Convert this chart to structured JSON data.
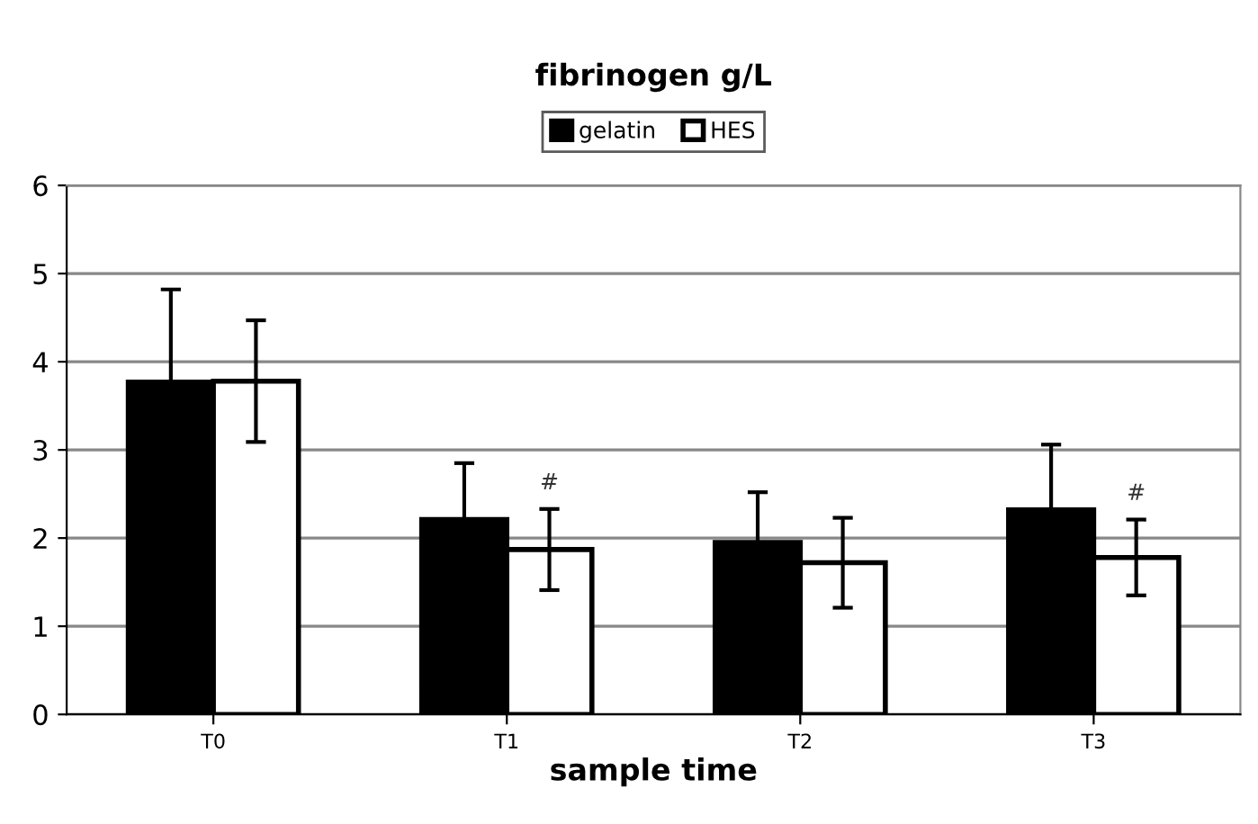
{
  "chart_data": {
    "type": "bar",
    "title": "fibrinogen g/L",
    "xlabel": "sample time",
    "categories": [
      "T0",
      "T1",
      "T2",
      "T3"
    ],
    "series": [
      {
        "name": "gelatin",
        "color": "#000000",
        "values": [
          3.77,
          2.21,
          1.95,
          2.32
        ],
        "errors": [
          1.05,
          0.64,
          0.57,
          0.74
        ]
      },
      {
        "name": "HES",
        "color": "#ffffff",
        "values": [
          3.78,
          1.87,
          1.72,
          1.78
        ],
        "errors": [
          0.69,
          0.46,
          0.51,
          0.43
        ]
      }
    ],
    "annotations": [
      "#",
      "#"
    ],
    "ylim": [
      0,
      6
    ],
    "yticks": [
      0,
      1,
      2,
      3,
      4,
      5,
      6
    ],
    "grid": "y",
    "legend": "top"
  }
}
